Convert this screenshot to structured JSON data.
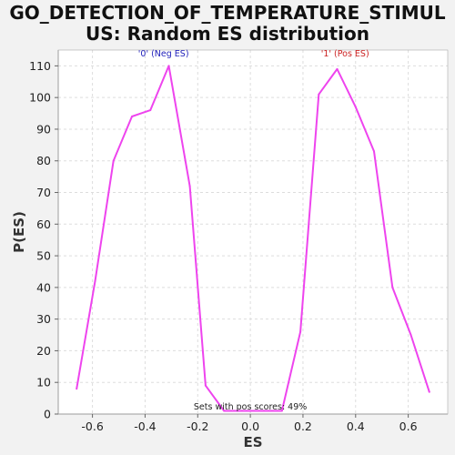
{
  "chart_data": {
    "type": "line",
    "title_lines": [
      "GO_DETECTION_OF_TEMPERATURE_STIMUL",
      "US: Random ES distribution"
    ],
    "xlabel": "ES",
    "ylabel": "P(ES)",
    "xlim": [
      -0.73,
      0.75
    ],
    "ylim": [
      0,
      115
    ],
    "xticks": [
      -0.6,
      -0.4,
      -0.2,
      0.0,
      0.2,
      0.4,
      0.6
    ],
    "xtick_labels": [
      "-0.6",
      "-0.4",
      "-0.2",
      "0.0",
      "0.2",
      "0.4",
      "0.6"
    ],
    "yticks": [
      0,
      10,
      20,
      30,
      40,
      50,
      60,
      70,
      80,
      90,
      100,
      110
    ],
    "ytick_labels": [
      "0",
      "10",
      "20",
      "30",
      "40",
      "50",
      "60",
      "70",
      "80",
      "90",
      "100",
      "110"
    ],
    "grid": true,
    "series": [
      {
        "color": "#ee44ee",
        "x": [
          -0.66,
          -0.59,
          -0.52,
          -0.45,
          -0.38,
          -0.31,
          -0.23,
          -0.17,
          -0.1,
          -0.03,
          0.05,
          0.12,
          0.19,
          0.26,
          0.33,
          0.4,
          0.47,
          0.54,
          0.61,
          0.68
        ],
        "y": [
          8,
          42,
          80,
          94,
          96,
          110,
          72,
          9,
          1,
          1,
          1,
          1,
          26,
          101,
          109,
          97,
          83,
          40,
          25,
          7
        ]
      }
    ],
    "annotations": [
      {
        "text": "'0' (Neg ES)",
        "x": -0.33,
        "y": 113,
        "color": "#2222bb"
      },
      {
        "text": "'1' (Pos ES)",
        "x": 0.36,
        "y": 113,
        "color": "#cc2222"
      },
      {
        "text": "Sets with pos scores: 49%",
        "x": 0.0,
        "y": 1.5,
        "color": "#222222"
      }
    ]
  }
}
